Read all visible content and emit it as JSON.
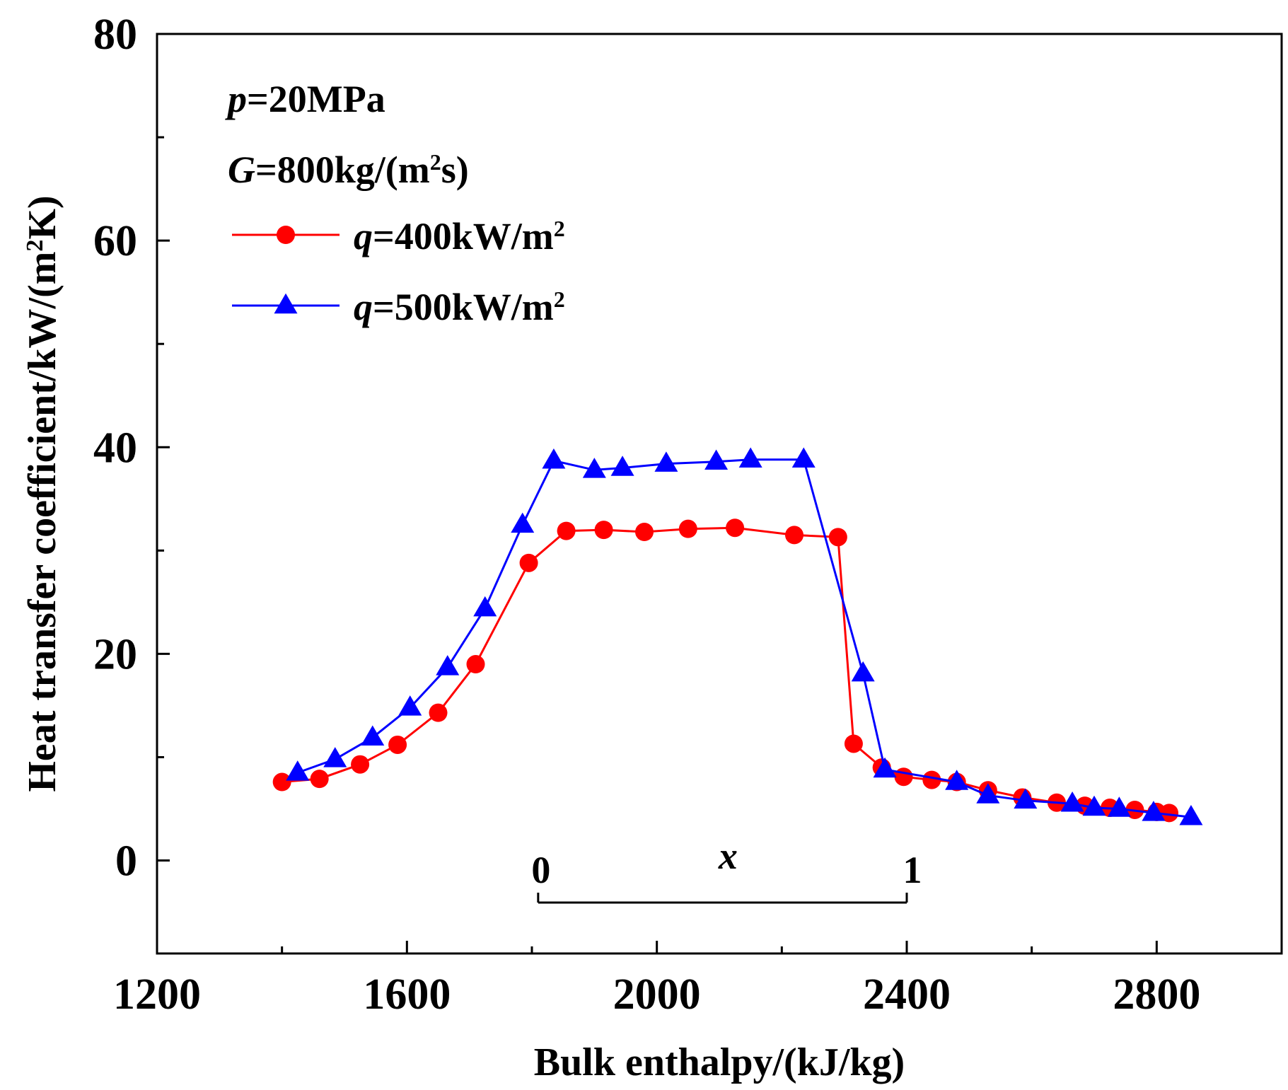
{
  "chart_data": {
    "type": "line",
    "xlabel": "Bulk enthalpy/(kJ/kg)",
    "ylabel": "Heat transfer coefficient/kW/(m²K)",
    "xlim": [
      1200,
      3000
    ],
    "ylim": [
      -9,
      80
    ],
    "xticks": [
      1200,
      1600,
      2000,
      2400,
      2800
    ],
    "yticks": [
      0,
      20,
      40,
      60,
      80
    ],
    "grid": false,
    "legend_position": "top-left",
    "conditions": [
      {
        "symbol": "p",
        "text": "=20MPa"
      },
      {
        "symbol": "G",
        "text": "=800kg/(m",
        "sup": "2",
        "tail": "s)"
      }
    ],
    "series": [
      {
        "name": "q=400kW/m²",
        "label_symbol": "q",
        "label_text": "=400kW/m",
        "label_sup": "2",
        "color": "#ff0000",
        "marker": "circle",
        "x": [
          1400,
          1460,
          1525,
          1585,
          1650,
          1710,
          1795,
          1855,
          1915,
          1980,
          2050,
          2125,
          2220,
          2290,
          2315,
          2360,
          2395,
          2440,
          2480,
          2530,
          2585,
          2640,
          2685,
          2725,
          2765,
          2800,
          2820
        ],
        "y": [
          7.6,
          7.9,
          9.3,
          11.2,
          14.3,
          19.0,
          28.8,
          31.9,
          32.0,
          31.8,
          32.1,
          32.2,
          31.5,
          31.3,
          11.3,
          9.0,
          8.1,
          7.8,
          7.6,
          6.8,
          6.1,
          5.6,
          5.3,
          5.1,
          4.9,
          4.7,
          4.6
        ]
      },
      {
        "name": "q=500kW/m²",
        "label_symbol": "q",
        "label_text": "=500kW/m",
        "label_sup": "2",
        "color": "#0000ff",
        "marker": "triangle",
        "x": [
          1425,
          1485,
          1545,
          1605,
          1665,
          1725,
          1785,
          1835,
          1900,
          1945,
          2015,
          2095,
          2150,
          2235,
          2330,
          2365,
          2480,
          2530,
          2590,
          2665,
          2700,
          2740,
          2795,
          2855
        ],
        "y": [
          8.5,
          9.8,
          11.9,
          14.8,
          18.7,
          24.4,
          32.5,
          38.7,
          37.8,
          38.0,
          38.4,
          38.6,
          38.8,
          38.8,
          18.1,
          8.8,
          7.6,
          6.3,
          5.8,
          5.5,
          5.1,
          5.0,
          4.6,
          4.2
        ]
      }
    ],
    "quality_scale": {
      "label": "x",
      "start_label": "0",
      "end_label": "1",
      "x_start": 1810,
      "x_end": 2400
    }
  }
}
